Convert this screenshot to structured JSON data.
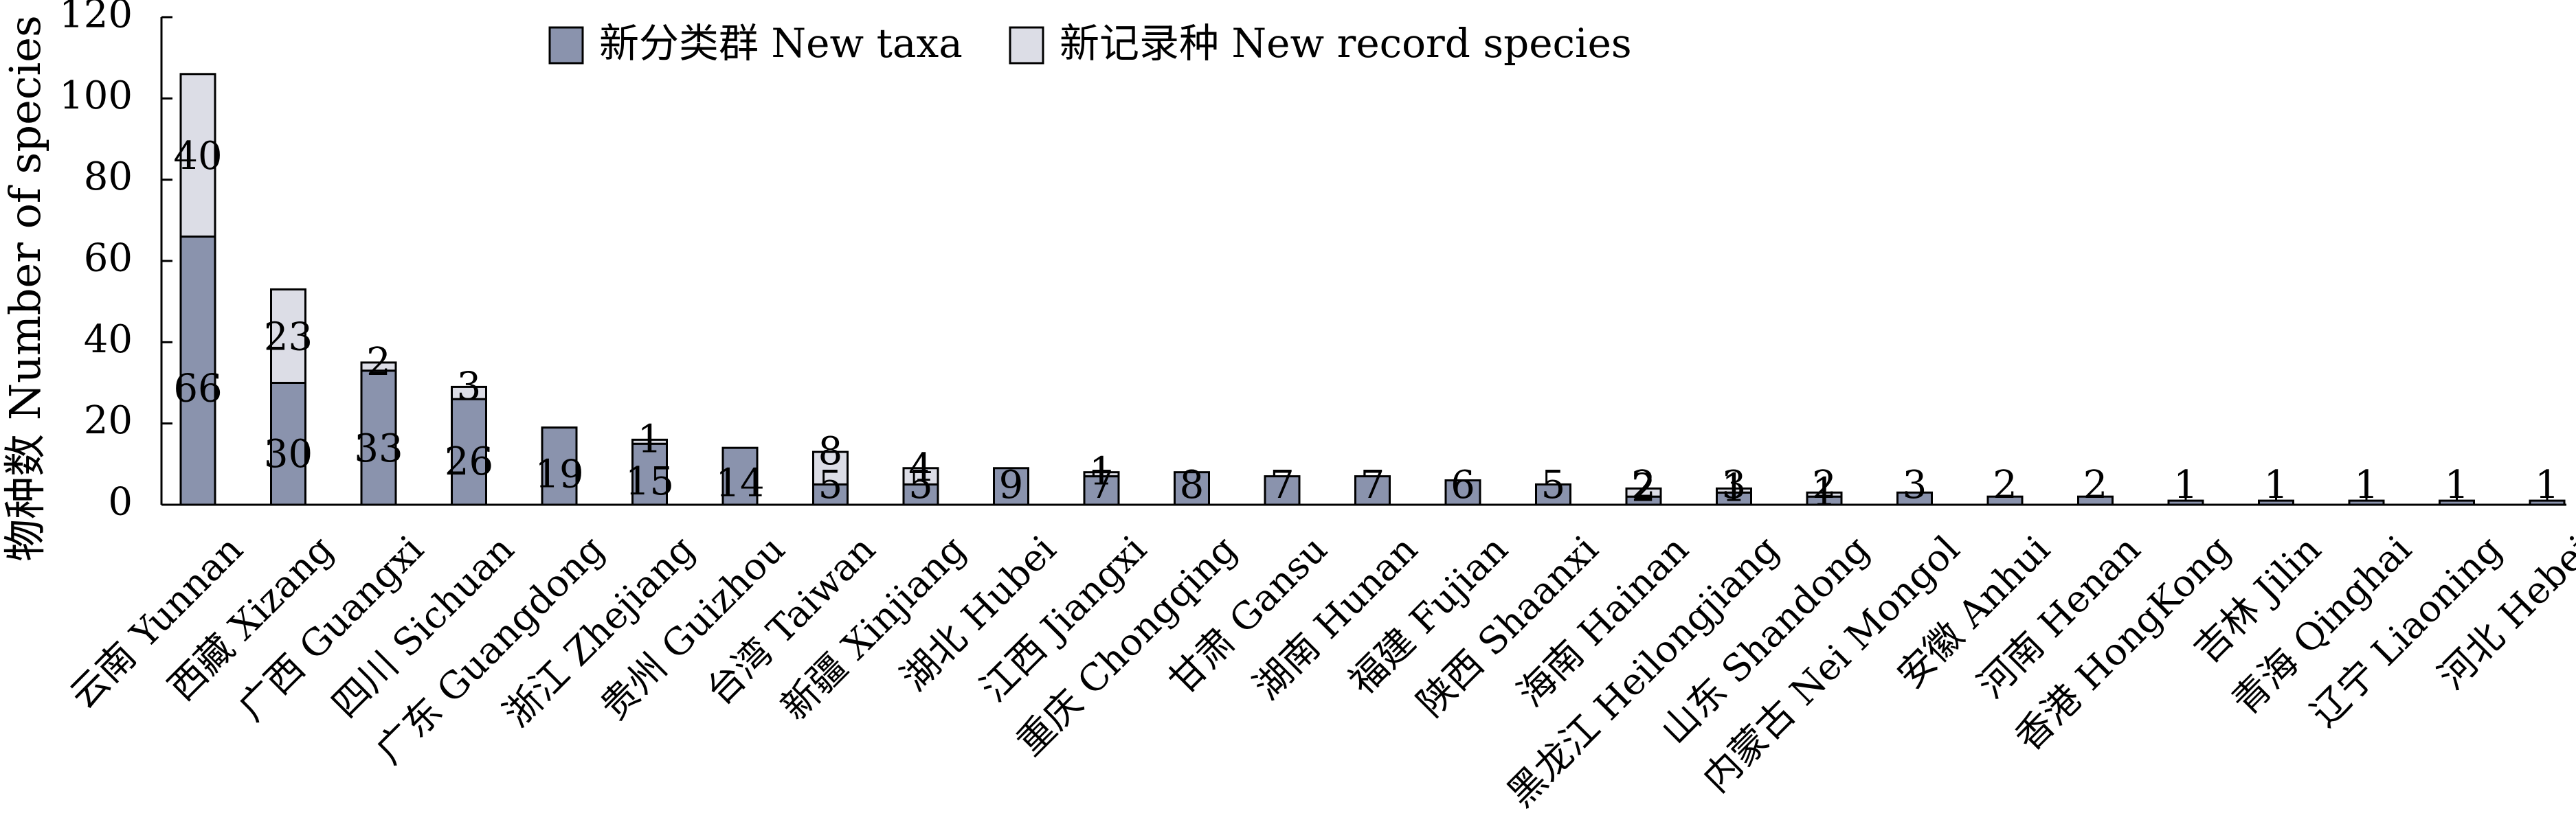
{
  "chart_data": {
    "type": "bar",
    "stacked": true,
    "ylabel": "物种数 Number of species",
    "xlabel": "",
    "ylim": [
      0,
      120
    ],
    "yticks": [
      0,
      20,
      40,
      60,
      80,
      100,
      120
    ],
    "grid": false,
    "legend_position": "top-center",
    "categories": [
      "云南 Yunnan",
      "西藏 Xizang",
      "广西 Guangxi",
      "四川 Sichuan",
      "广东 Guangdong",
      "浙江 Zhejiang",
      "贵州 Guizhou",
      "台湾 Taiwan",
      "新疆 Xinjiang",
      "湖北 Hubei",
      "江西 Jiangxi",
      "重庆 Chongqing",
      "甘肃 Gansu",
      "湖南 Hunan",
      "福建 Fujian",
      "陕西 Shaanxi",
      "海南 Hainan",
      "黑龙江 Heilongjiang",
      "山东 Shandong",
      "内蒙古 Nei Mongol",
      "安徽 Anhui",
      "河南 Henan",
      "香港 HongKong",
      "吉林 Jilin",
      "青海 Qinghai",
      "辽宁 Liaoning",
      "河北 Hebei"
    ],
    "series": [
      {
        "name": "新分类群 New taxa",
        "color": "#8a93ad",
        "values": [
          66,
          30,
          33,
          26,
          19,
          15,
          14,
          5,
          5,
          9,
          7,
          8,
          7,
          7,
          6,
          5,
          2,
          3,
          2,
          3,
          2,
          2,
          1,
          1,
          1,
          1,
          1
        ]
      },
      {
        "name": "新记录种 New record species",
        "color": "#dcdde6",
        "values": [
          40,
          23,
          2,
          3,
          0,
          1,
          0,
          8,
          4,
          0,
          1,
          0,
          0,
          0,
          0,
          0,
          2,
          1,
          1,
          0,
          0,
          0,
          0,
          0,
          0,
          0,
          0
        ]
      }
    ]
  }
}
